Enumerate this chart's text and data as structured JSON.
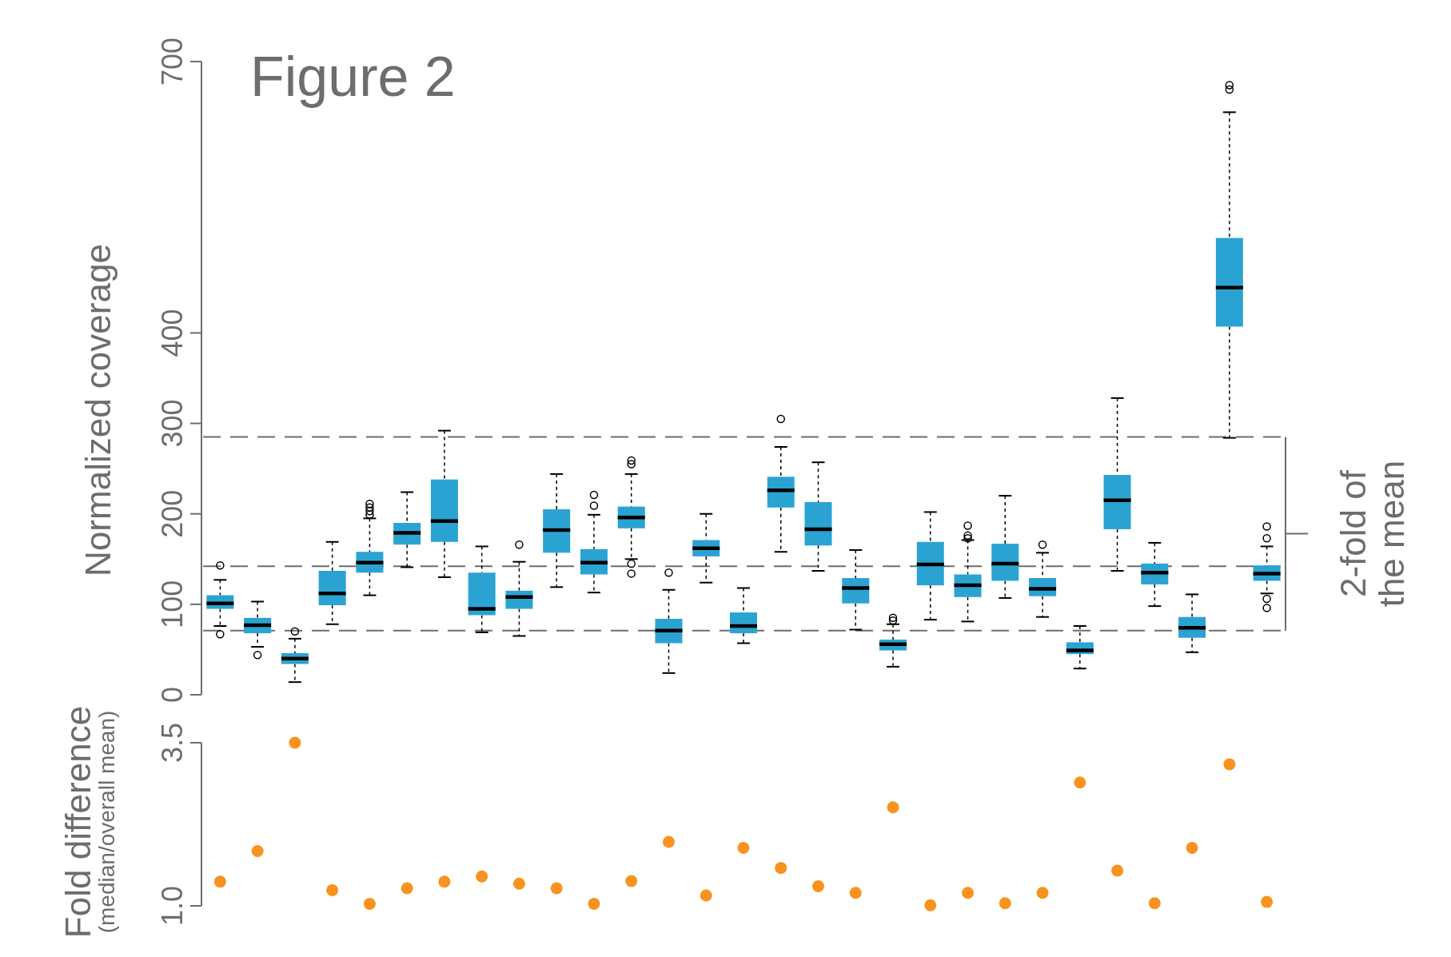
{
  "chart_data": [
    {
      "type": "box",
      "title": "Figure 2",
      "ylabel": "Normalized coverage",
      "categories": [
        null,
        null,
        null,
        null,
        null,
        null,
        null,
        null,
        null,
        null,
        null,
        null,
        null,
        null,
        null,
        null,
        null,
        null,
        null,
        null,
        null,
        null,
        null,
        null,
        null,
        null,
        null,
        null,
        null
      ],
      "color": "#2ba3d2",
      "ylim": [
        0,
        700
      ],
      "yticks": [
        0,
        100,
        200,
        300,
        400,
        700
      ],
      "boxes": [
        {
          "low": 76,
          "q1": 95,
          "median": 101,
          "q3": 110,
          "high": 127,
          "outliers": [
            67,
            143
          ]
        },
        {
          "low": 53,
          "q1": 68,
          "median": 77,
          "q3": 85,
          "high": 103,
          "outliers": [
            44
          ]
        },
        {
          "low": 14,
          "q1": 34,
          "median": 40,
          "q3": 46,
          "high": 62,
          "outliers": [
            70
          ]
        },
        {
          "low": 78,
          "q1": 99,
          "median": 112,
          "q3": 137,
          "high": 169
        },
        {
          "low": 110,
          "q1": 135,
          "median": 146,
          "q3": 158,
          "high": 195,
          "outliers": [
            199,
            203,
            207,
            211
          ]
        },
        {
          "low": 141,
          "q1": 166,
          "median": 179,
          "q3": 190,
          "high": 224
        },
        {
          "low": 130,
          "q1": 169,
          "median": 192,
          "q3": 238,
          "high": 292
        },
        {
          "low": 69,
          "q1": 88,
          "median": 95,
          "q3": 135,
          "high": 164
        },
        {
          "low": 65,
          "q1": 95,
          "median": 108,
          "q3": 115,
          "high": 147,
          "outliers": [
            166
          ]
        },
        {
          "low": 119,
          "q1": 157,
          "median": 182,
          "q3": 205,
          "high": 244
        },
        {
          "low": 113,
          "q1": 133,
          "median": 146,
          "q3": 161,
          "high": 199,
          "outliers": [
            209,
            221
          ]
        },
        {
          "low": 150,
          "q1": 184,
          "median": 196,
          "q3": 208,
          "high": 244,
          "outliers": [
            134,
            145,
            255,
            259
          ]
        },
        {
          "low": 24,
          "q1": 57,
          "median": 71,
          "q3": 84,
          "high": 116,
          "outliers": [
            135
          ]
        },
        {
          "low": 124,
          "q1": 153,
          "median": 162,
          "q3": 171,
          "high": 200
        },
        {
          "low": 57,
          "q1": 68,
          "median": 76,
          "q3": 91,
          "high": 118
        },
        {
          "low": 158,
          "q1": 207,
          "median": 226,
          "q3": 241,
          "high": 274,
          "outliers": [
            305
          ]
        },
        {
          "low": 137,
          "q1": 165,
          "median": 183,
          "q3": 213,
          "high": 257
        },
        {
          "low": 72,
          "q1": 101,
          "median": 118,
          "q3": 129,
          "high": 160
        },
        {
          "low": 31,
          "q1": 49,
          "median": 56,
          "q3": 61,
          "high": 78,
          "outliers": [
            82,
            85
          ]
        },
        {
          "low": 83,
          "q1": 121,
          "median": 144,
          "q3": 169,
          "high": 202
        },
        {
          "low": 81,
          "q1": 108,
          "median": 121,
          "q3": 133,
          "high": 171,
          "outliers": [
            173,
            176,
            187
          ]
        },
        {
          "low": 107,
          "q1": 126,
          "median": 145,
          "q3": 167,
          "high": 220
        },
        {
          "low": 86,
          "q1": 109,
          "median": 117,
          "q3": 129,
          "high": 157,
          "outliers": [
            166
          ]
        },
        {
          "low": 29,
          "q1": 45,
          "median": 49,
          "q3": 58,
          "high": 76
        },
        {
          "low": 137,
          "q1": 183,
          "median": 215,
          "q3": 243,
          "high": 328
        },
        {
          "low": 98,
          "q1": 122,
          "median": 135,
          "q3": 145,
          "high": 168
        },
        {
          "low": 47,
          "q1": 63,
          "median": 74,
          "q3": 86,
          "high": 111
        },
        {
          "low": 284,
          "q1": 407,
          "median": 450,
          "q3": 505,
          "high": 644,
          "outliers": [
            669,
            674
          ]
        },
        {
          "low": 112,
          "q1": 126,
          "median": 134,
          "q3": 143,
          "high": 164,
          "outliers": [
            96,
            106,
            173,
            186
          ]
        }
      ],
      "ref_lines": [
        {
          "axis": "y",
          "value": 285,
          "line_style": "dashed"
        },
        {
          "axis": "y",
          "value": 142,
          "line_style": "dashed"
        },
        {
          "axis": "y",
          "value": 71,
          "line_style": "dashed"
        }
      ],
      "annotations": [
        "2-fold of\nthe mean"
      ]
    },
    {
      "type": "scatter",
      "ylabel": "Fold difference\n(median/overall mean)",
      "categories": [
        null,
        null,
        null,
        null,
        null,
        null,
        null,
        null,
        null,
        null,
        null,
        null,
        null,
        null,
        null,
        null,
        null,
        null,
        null,
        null,
        null,
        null,
        null,
        null,
        null,
        null,
        null,
        null,
        null
      ],
      "color": "#f7931e",
      "marker": "circle",
      "ylim": [
        1,
        3.5
      ],
      "yticks": [
        {
          "value": 1,
          "label": "1.0"
        },
        3.5
      ],
      "values": [
        1.37,
        1.84,
        3.5,
        1.24,
        1.03,
        1.27,
        1.37,
        1.45,
        1.34,
        1.27,
        1.03,
        1.38,
        1.98,
        1.16,
        1.89,
        1.58,
        1.3,
        1.2,
        2.51,
        1.01,
        1.2,
        1.04,
        1.2,
        2.89,
        1.54,
        1.04,
        1.89,
        3.17,
        1.06
      ]
    }
  ]
}
